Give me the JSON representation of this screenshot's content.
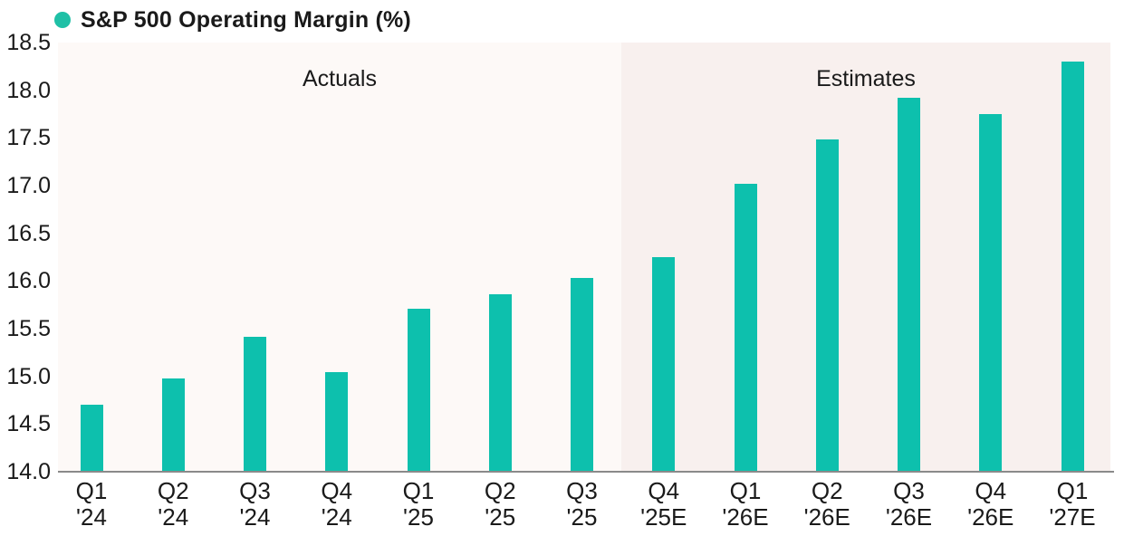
{
  "legend": {
    "label": "S&P 500 Operating Margin (%)"
  },
  "regions": {
    "actuals_label": "Actuals",
    "estimates_label": "Estimates"
  },
  "colors": {
    "bar": "#0dc0ad",
    "legend_dot": "#1fc0a6",
    "actuals_bg": "#fdf9f7",
    "estimates_bg": "#f8f0ee",
    "axis_line": "#8a8a8a",
    "text": "#1a1a1a"
  },
  "chart_data": {
    "type": "bar",
    "title": "S&P 500 Operating Margin (%)",
    "categories": [
      "Q1 '24",
      "Q2 '24",
      "Q3 '24",
      "Q4 '24",
      "Q1 '25",
      "Q2 '25",
      "Q3 '25",
      "Q4 '25E",
      "Q1 '26E",
      "Q2 '26E",
      "Q3 '26E",
      "Q4 '26E",
      "Q1 '27E"
    ],
    "values": [
      14.7,
      14.98,
      15.41,
      15.04,
      15.71,
      15.86,
      16.03,
      16.25,
      17.02,
      17.48,
      17.92,
      17.75,
      18.3
    ],
    "xlabel": "",
    "ylabel": "",
    "ylim": [
      14.0,
      18.5
    ],
    "ytick_step": 0.5,
    "yticks": [
      14.0,
      14.5,
      15.0,
      15.5,
      16.0,
      16.5,
      17.0,
      17.5,
      18.0,
      18.5
    ],
    "ytick_labels": [
      "14.0",
      "14.5",
      "15.0",
      "15.5",
      "16.0",
      "16.5",
      "17.0",
      "17.5",
      "18.0",
      "18.5"
    ],
    "grid": false,
    "legend_position": "top-left",
    "annotations": [
      {
        "text": "Actuals",
        "applies_to_categories": "Q1 '24 through Q3 '25"
      },
      {
        "text": "Estimates",
        "applies_to_categories": "Q4 '25E through Q1 '27E"
      }
    ]
  }
}
